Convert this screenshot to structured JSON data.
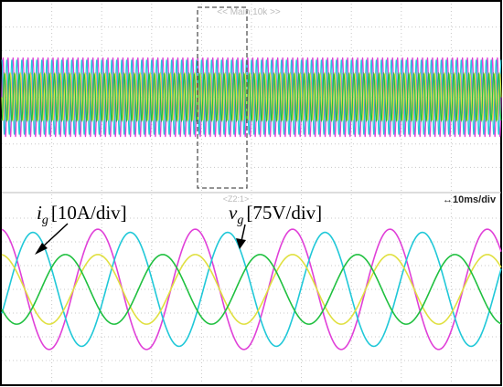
{
  "scope": {
    "top_header": "<< Main:10k >>",
    "bottom_header": "<Z2:1>",
    "timebase": "↔10ms/div"
  },
  "annotations": {
    "current": {
      "symbol": "i",
      "sub": "g",
      "scale": "[10A/div]"
    },
    "voltage": {
      "symbol": "v",
      "sub": "g",
      "scale": "[75V/div]"
    }
  },
  "chart_data": [
    {
      "type": "line",
      "panel": "overview",
      "note": "compressed view of the same waveforms; dense sinusoids",
      "xlim": [
        0,
        10
      ],
      "ylim": [
        -4,
        4
      ],
      "grid": true,
      "series": [
        {
          "color": "#e040d8",
          "amplitude": 1.7,
          "cycles": 100
        },
        {
          "color": "#20c8d8",
          "amplitude": 1.6,
          "cycles": 100
        },
        {
          "color": "#e0e040",
          "amplitude": 1.0,
          "cycles": 100
        },
        {
          "color": "#20c040",
          "amplitude": 1.0,
          "cycles": 100
        }
      ]
    },
    {
      "type": "line",
      "panel": "zoom",
      "xlim": [
        0,
        10
      ],
      "ylim": [
        -3.0,
        3.0
      ],
      "x_unit": "ms",
      "grid": true,
      "series": [
        {
          "color": "#e040d8",
          "amplitude": 1.9,
          "period": 1.95,
          "phase_deg": 95
        },
        {
          "color": "#20c8d8",
          "amplitude": 1.8,
          "period": 1.95,
          "phase_deg": -25
        },
        {
          "color": "#e0e040",
          "amplitude": 1.1,
          "period": 1.95,
          "phase_deg": 95
        },
        {
          "color": "#20c040",
          "amplitude": 1.1,
          "period": 1.95,
          "phase_deg": -145
        }
      ]
    }
  ]
}
